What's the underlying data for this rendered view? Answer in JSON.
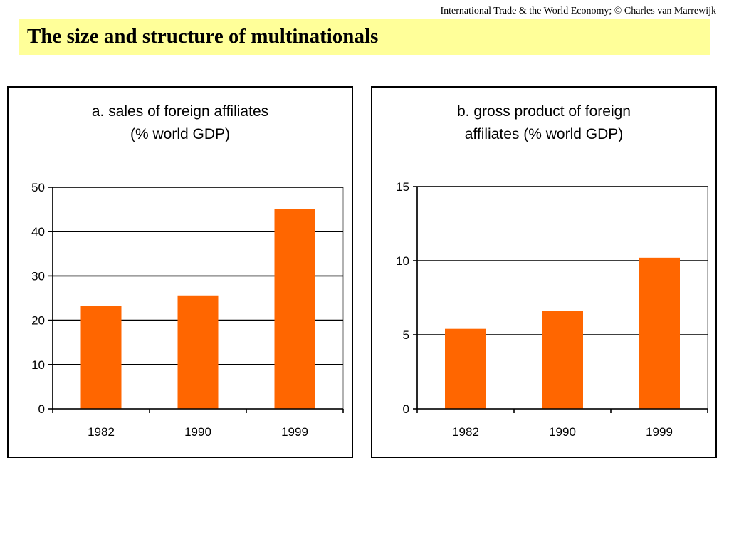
{
  "header": {
    "credit": "International Trade & the World Economy;  © Charles van Marrewijk"
  },
  "slide": {
    "title": "The size and structure of multinationals"
  },
  "colors": {
    "bar": "#ff6600",
    "title_band": "#ffff99"
  },
  "chart_data": [
    {
      "type": "bar",
      "title_line1": "a. sales of foreign affiliates",
      "title_line2": "(% world GDP)",
      "categories": [
        "1982",
        "1990",
        "1999"
      ],
      "values": [
        23.3,
        25.6,
        45.1
      ],
      "ylim": [
        0,
        50
      ],
      "yticks": [
        0,
        10,
        20,
        30,
        40,
        50
      ],
      "grid": true,
      "legend": "none"
    },
    {
      "type": "bar",
      "title_line1": "b. gross product of foreign",
      "title_line2": "affiliates (% world GDP)",
      "categories": [
        "1982",
        "1990",
        "1999"
      ],
      "values": [
        5.4,
        6.6,
        10.2
      ],
      "ylim": [
        0,
        15
      ],
      "yticks": [
        0,
        5,
        10,
        15
      ],
      "grid": true,
      "legend": "none"
    }
  ]
}
